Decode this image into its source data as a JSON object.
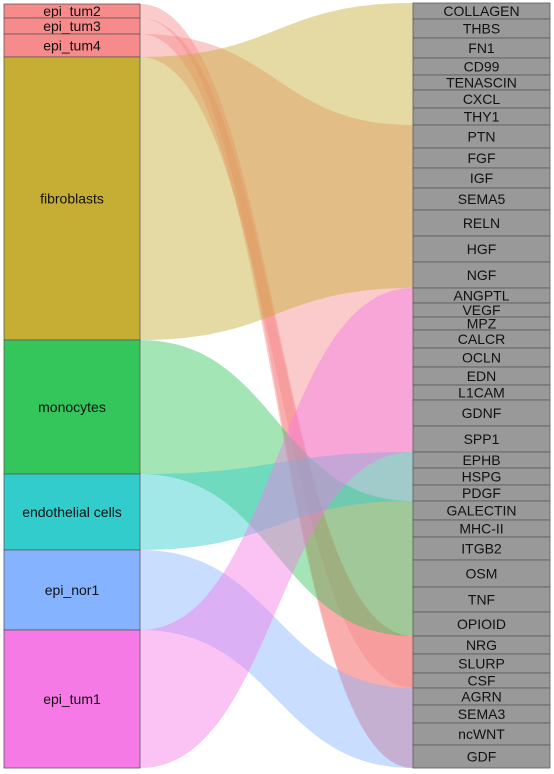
{
  "chart_data": {
    "type": "sankey",
    "sources": [
      {
        "name": "epi_tum2",
        "color": "#f78a8a"
      },
      {
        "name": "epi_tum3",
        "color": "#f78a8a"
      },
      {
        "name": "epi_tum4",
        "color": "#f78a8a"
      },
      {
        "name": "fibroblasts",
        "color": "#c5ae33"
      },
      {
        "name": "monocytes",
        "color": "#34c65a"
      },
      {
        "name": "endothelial cells",
        "color": "#33cccc"
      },
      {
        "name": "epi_nor1",
        "color": "#85b3ff"
      },
      {
        "name": "epi_tum1",
        "color": "#f57ae6"
      }
    ],
    "targets": [
      "COLLAGEN",
      "THBS",
      "FN1",
      "CD99",
      "TENASCIN",
      "CXCL",
      "THY1",
      "PTN",
      "FGF",
      "IGF",
      "SEMA5",
      "RELN",
      "HGF",
      "NGF",
      "ANGPTL",
      "VEGF",
      "MPZ",
      "CALCR",
      "OCLN",
      "EDN",
      "L1CAM",
      "GDNF",
      "SPP1",
      "EPHB",
      "HSPG",
      "PDGF",
      "GALECTIN",
      "MHC-II",
      "ITGB2",
      "OSM",
      "TNF",
      "OPIOID",
      "NRG",
      "SLURP",
      "CSF",
      "AGRN",
      "SEMA3",
      "ncWNT",
      "GDF"
    ],
    "target_color": "#999999",
    "flows": [
      {
        "source": "epi_tum2",
        "target_range": [
          "NRG",
          "GDF"
        ]
      },
      {
        "source": "epi_tum3",
        "target_range": [
          "NRG",
          "GDF"
        ]
      },
      {
        "source": "epi_tum4",
        "target_range": [
          "PTN",
          "CSF"
        ]
      },
      {
        "source": "fibroblasts",
        "target_range": [
          "COLLAGEN",
          "NGF"
        ]
      },
      {
        "source": "monocytes",
        "target_range": [
          "GALECTIN",
          "OPIOID"
        ]
      },
      {
        "source": "endothelial cells",
        "target_range": [
          "EPHB",
          "PDGF"
        ]
      },
      {
        "source": "epi_nor1",
        "target_range": [
          "AGRN",
          "GDF"
        ]
      },
      {
        "source": "epi_tum1",
        "target_range": [
          "ANGPTL",
          "SPP1"
        ]
      }
    ]
  }
}
